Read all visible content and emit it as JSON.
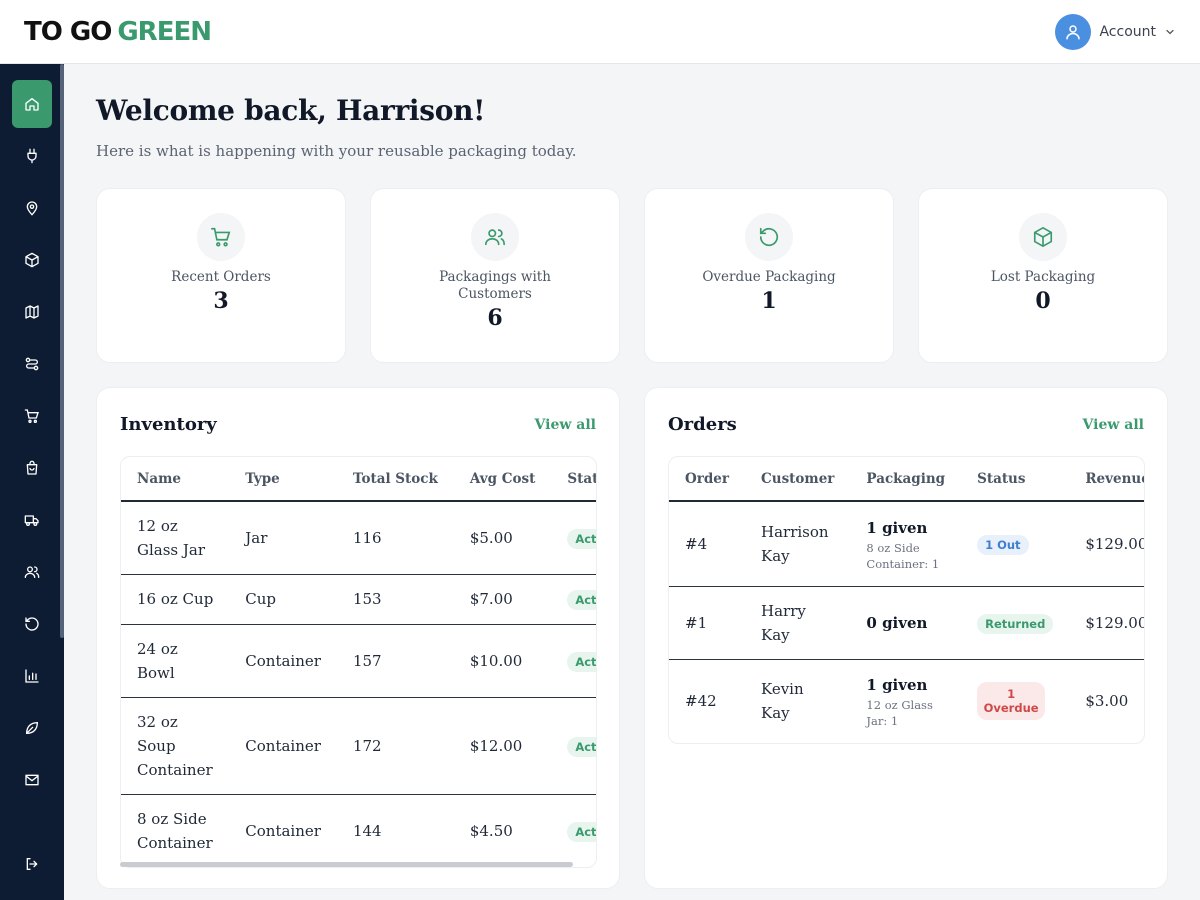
{
  "header": {
    "logo_part1": "TO GO",
    "logo_part2": "GREEN",
    "account_label": "Account"
  },
  "sidebar": {
    "items": [
      {
        "icon": "home-icon",
        "active": true
      },
      {
        "icon": "plug-icon"
      },
      {
        "icon": "location-pin-icon"
      },
      {
        "icon": "package-box-icon"
      },
      {
        "icon": "map-icon"
      },
      {
        "icon": "route-icon"
      },
      {
        "icon": "shopping-cart-icon"
      },
      {
        "icon": "shopping-bag-icon"
      },
      {
        "icon": "truck-icon"
      },
      {
        "icon": "users-icon"
      },
      {
        "icon": "return-arrow-icon"
      },
      {
        "icon": "bar-chart-icon"
      },
      {
        "icon": "leaf-icon"
      },
      {
        "icon": "mail-icon"
      },
      {
        "icon": "logout-icon"
      }
    ]
  },
  "main": {
    "welcome": "Welcome back, Harrison!",
    "subtitle": "Here is what is happening with your reusable packaging today."
  },
  "stats": [
    {
      "label": "Recent Orders",
      "value": "3",
      "icon": "cart-icon"
    },
    {
      "label": "Packagings with Customers",
      "value": "6",
      "icon": "users-icon"
    },
    {
      "label": "Overdue Packaging",
      "value": "1",
      "icon": "rotate-ccw-icon"
    },
    {
      "label": "Lost Packaging",
      "value": "0",
      "icon": "box-icon"
    }
  ],
  "inventory": {
    "title": "Inventory",
    "view_all": "View all",
    "headers": [
      "Name",
      "Type",
      "Total Stock",
      "Avg Cost",
      "Status"
    ],
    "rows": [
      {
        "name": "12 oz Glass Jar",
        "type": "Jar",
        "stock": "116",
        "cost": "$5.00",
        "status": "Active"
      },
      {
        "name": "16 oz Cup",
        "type": "Cup",
        "stock": "153",
        "cost": "$7.00",
        "status": "Active"
      },
      {
        "name": "24 oz Bowl",
        "type": "Container",
        "stock": "157",
        "cost": "$10.00",
        "status": "Active"
      },
      {
        "name": "32 oz Soup Container",
        "type": "Container",
        "stock": "172",
        "cost": "$12.00",
        "status": "Active"
      },
      {
        "name": "8 oz Side Container",
        "type": "Container",
        "stock": "144",
        "cost": "$4.50",
        "status": "Active"
      }
    ]
  },
  "orders": {
    "title": "Orders",
    "view_all": "View all",
    "headers": [
      "Order",
      "Customer",
      "Packaging",
      "Status",
      "Revenue"
    ],
    "rows": [
      {
        "order": "#4",
        "customer": "Harrison Kay",
        "packaging": "1 given",
        "packaging_detail": "8 oz Side Container: 1",
        "status": "1 Out",
        "revenue": "$129.00"
      },
      {
        "order": "#1",
        "customer": "Harry Kay",
        "packaging": "0 given",
        "packaging_detail": "",
        "status": "Returned",
        "revenue": "$129.00"
      },
      {
        "order": "#42",
        "customer": "Kevin Kay",
        "packaging": "1 given",
        "packaging_detail": "12 oz Glass Jar: 1",
        "status": "1 Overdue",
        "revenue": "$3.00"
      }
    ]
  },
  "colors": {
    "accent": "#3a9a6e",
    "sidebar_bg": "#0d1b33",
    "status_active": "#3a9a6e",
    "status_out": "#3e7fd2",
    "status_overdue": "#d04848"
  }
}
